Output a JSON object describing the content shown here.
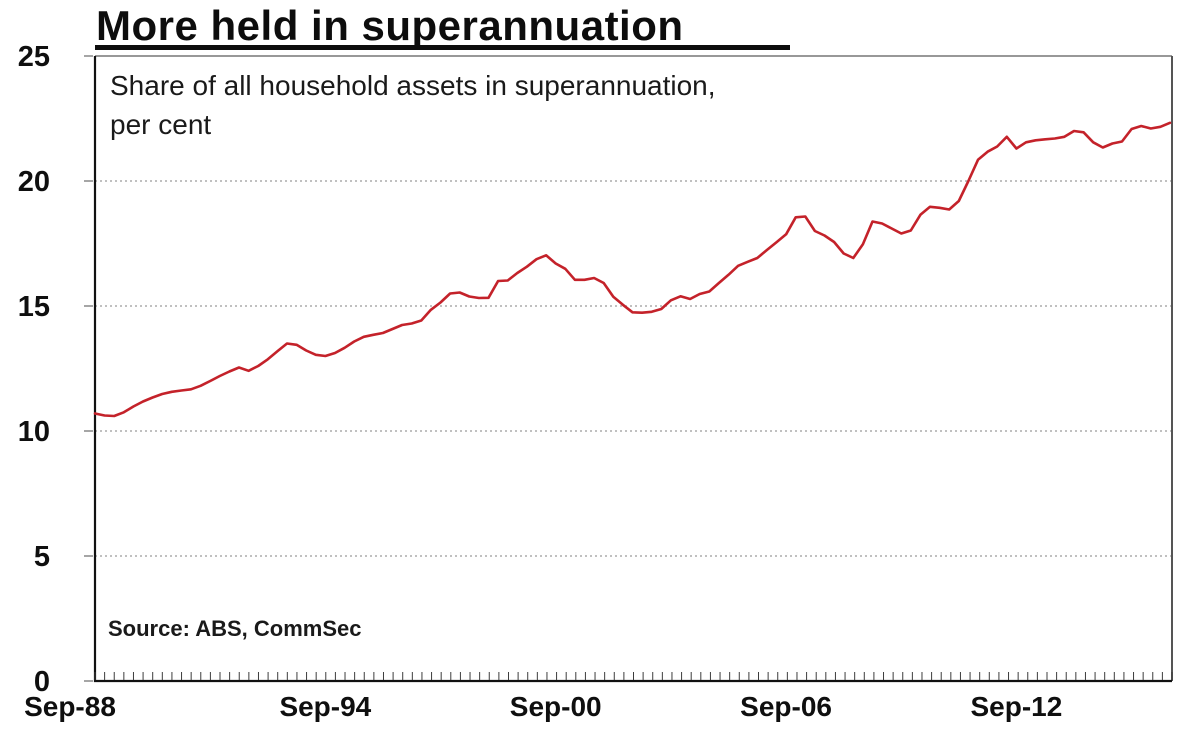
{
  "title": "More held in superannuation",
  "subtitle_lines": [
    "Share of all household assets in superannuation,",
    "per cent"
  ],
  "source": "Source: ABS, CommSec",
  "colors": {
    "line": "#c4222a",
    "text": "#111111",
    "grid": "#9a9a9a",
    "axis": "#111111",
    "border": "#777777",
    "tick": "#3c3c3c"
  },
  "chart_data": {
    "type": "line",
    "title": "More held in superannuation",
    "subtitle": "Share of all household assets in superannuation, per cent",
    "source": "Source: ABS, CommSec",
    "frequency": "quarterly",
    "x_start_label": "Sep-88",
    "x_tick_labels": [
      {
        "label": "Sep-88",
        "index": 0
      },
      {
        "label": "Sep-94",
        "index": 24
      },
      {
        "label": "Sep-00",
        "index": 48
      },
      {
        "label": "Sep-06",
        "index": 72
      },
      {
        "label": "Sep-12",
        "index": 96
      }
    ],
    "y_ticks": [
      0,
      5,
      10,
      15,
      20,
      25
    ],
    "ylim": [
      0,
      25
    ],
    "ylabel": "per cent",
    "grid": "horizontal-dotted",
    "legend": "none",
    "values": [
      10.7,
      10.62,
      10.6,
      10.75,
      10.98,
      11.18,
      11.34,
      11.48,
      11.57,
      11.62,
      11.67,
      11.81,
      12.0,
      12.2,
      12.38,
      12.54,
      12.41,
      12.6,
      12.87,
      13.19,
      13.5,
      13.45,
      13.22,
      13.05,
      13.0,
      13.12,
      13.33,
      13.58,
      13.77,
      13.85,
      13.92,
      14.08,
      14.24,
      14.3,
      14.42,
      14.85,
      15.14,
      15.5,
      15.54,
      15.38,
      15.32,
      15.33,
      16.0,
      16.02,
      16.32,
      16.57,
      16.87,
      17.03,
      16.7,
      16.49,
      16.05,
      16.05,
      16.12,
      15.92,
      15.37,
      15.05,
      14.75,
      14.73,
      14.77,
      14.88,
      15.23,
      15.39,
      15.28,
      15.48,
      15.58,
      15.92,
      16.25,
      16.61,
      16.77,
      16.92,
      17.24,
      17.55,
      17.87,
      18.55,
      18.58,
      18.0,
      17.82,
      17.56,
      17.1,
      16.92,
      17.47,
      18.38,
      18.3,
      18.1,
      17.9,
      18.02,
      18.65,
      18.97,
      18.93,
      18.86,
      19.2,
      20.0,
      20.85,
      21.17,
      21.38,
      21.77,
      21.3,
      21.55,
      21.63,
      21.67,
      21.7,
      21.77,
      22.0,
      21.95,
      21.55,
      21.34,
      21.5,
      21.58,
      22.08,
      22.2,
      22.1,
      22.17,
      22.33
    ]
  }
}
